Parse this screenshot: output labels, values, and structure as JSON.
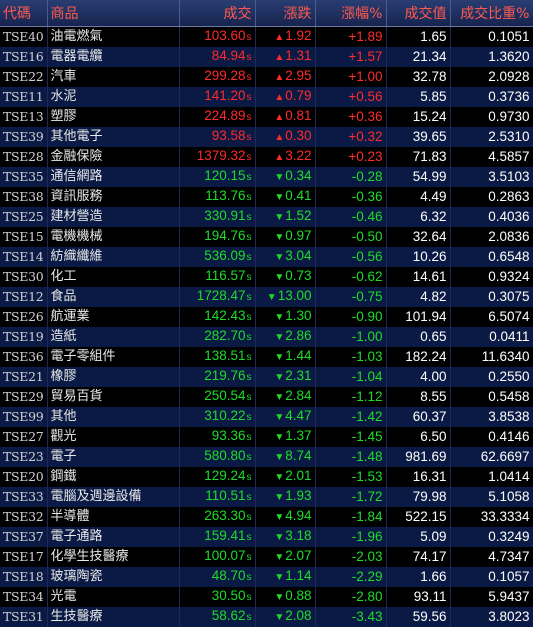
{
  "headers": {
    "code": "代碼",
    "name": "商品",
    "price": "成交",
    "change": "漲跌",
    "pct": "漲幅%",
    "volume": "成交值",
    "ratio": "成交比重%"
  },
  "colors": {
    "up": "#ff2a2a",
    "down": "#1fdc2a",
    "header_text": "#ff5a50",
    "row_alt": "#0a1a44"
  },
  "rows": [
    {
      "code": "TSE40",
      "name": "油電燃氣",
      "price": "103.60",
      "flag": "s",
      "dir": "up",
      "change": "1.92",
      "pct": "+1.89",
      "volume": "1.65",
      "ratio": "0.1051"
    },
    {
      "code": "TSE16",
      "name": "電器電纜",
      "price": "84.94",
      "flag": "s",
      "dir": "up",
      "change": "1.31",
      "pct": "+1.57",
      "volume": "21.34",
      "ratio": "1.3620"
    },
    {
      "code": "TSE22",
      "name": "汽車",
      "price": "299.28",
      "flag": "s",
      "dir": "up",
      "change": "2.95",
      "pct": "+1.00",
      "volume": "32.78",
      "ratio": "2.0928"
    },
    {
      "code": "TSE11",
      "name": "水泥",
      "price": "141.20",
      "flag": "s",
      "dir": "up",
      "change": "0.79",
      "pct": "+0.56",
      "volume": "5.85",
      "ratio": "0.3736"
    },
    {
      "code": "TSE13",
      "name": "塑膠",
      "price": "224.89",
      "flag": "s",
      "dir": "up",
      "change": "0.81",
      "pct": "+0.36",
      "volume": "15.24",
      "ratio": "0.9730"
    },
    {
      "code": "TSE39",
      "name": "其他電子",
      "price": "93.58",
      "flag": "s",
      "dir": "up",
      "change": "0.30",
      "pct": "+0.32",
      "volume": "39.65",
      "ratio": "2.5310"
    },
    {
      "code": "TSE28",
      "name": "金融保險",
      "price": "1379.32",
      "flag": "s",
      "dir": "up",
      "change": "3.22",
      "pct": "+0.23",
      "volume": "71.83",
      "ratio": "4.5857"
    },
    {
      "code": "TSE35",
      "name": "通信網路",
      "price": "120.15",
      "flag": "s",
      "dir": "dn",
      "change": "0.34",
      "pct": "-0.28",
      "volume": "54.99",
      "ratio": "3.5103"
    },
    {
      "code": "TSE38",
      "name": "資訊服務",
      "price": "113.76",
      "flag": "s",
      "dir": "dn",
      "change": "0.41",
      "pct": "-0.36",
      "volume": "4.49",
      "ratio": "0.2863"
    },
    {
      "code": "TSE25",
      "name": "建材營造",
      "price": "330.91",
      "flag": "s",
      "dir": "dn",
      "change": "1.52",
      "pct": "-0.46",
      "volume": "6.32",
      "ratio": "0.4036"
    },
    {
      "code": "TSE15",
      "name": "電機機械",
      "price": "194.76",
      "flag": "s",
      "dir": "dn",
      "change": "0.97",
      "pct": "-0.50",
      "volume": "32.64",
      "ratio": "2.0836"
    },
    {
      "code": "TSE14",
      "name": "紡織纖維",
      "price": "536.09",
      "flag": "s",
      "dir": "dn",
      "change": "3.04",
      "pct": "-0.56",
      "volume": "10.26",
      "ratio": "0.6548"
    },
    {
      "code": "TSE30",
      "name": "化工",
      "price": "116.57",
      "flag": "s",
      "dir": "dn",
      "change": "0.73",
      "pct": "-0.62",
      "volume": "14.61",
      "ratio": "0.9324"
    },
    {
      "code": "TSE12",
      "name": "食品",
      "price": "1728.47",
      "flag": "s",
      "dir": "dn",
      "change": "13.00",
      "pct": "-0.75",
      "volume": "4.82",
      "ratio": "0.3075"
    },
    {
      "code": "TSE26",
      "name": "航運業",
      "price": "142.43",
      "flag": "s",
      "dir": "dn",
      "change": "1.30",
      "pct": "-0.90",
      "volume": "101.94",
      "ratio": "6.5074"
    },
    {
      "code": "TSE19",
      "name": "造紙",
      "price": "282.70",
      "flag": "s",
      "dir": "dn",
      "change": "2.86",
      "pct": "-1.00",
      "volume": "0.65",
      "ratio": "0.0411"
    },
    {
      "code": "TSE36",
      "name": "電子零組件",
      "price": "138.51",
      "flag": "s",
      "dir": "dn",
      "change": "1.44",
      "pct": "-1.03",
      "volume": "182.24",
      "ratio": "11.6340"
    },
    {
      "code": "TSE21",
      "name": "橡膠",
      "price": "219.76",
      "flag": "s",
      "dir": "dn",
      "change": "2.31",
      "pct": "-1.04",
      "volume": "4.00",
      "ratio": "0.2550"
    },
    {
      "code": "TSE29",
      "name": "貿易百貨",
      "price": "250.54",
      "flag": "s",
      "dir": "dn",
      "change": "2.84",
      "pct": "-1.12",
      "volume": "8.55",
      "ratio": "0.5458"
    },
    {
      "code": "TSE99",
      "name": "其他",
      "price": "310.22",
      "flag": "s",
      "dir": "dn",
      "change": "4.47",
      "pct": "-1.42",
      "volume": "60.37",
      "ratio": "3.8538"
    },
    {
      "code": "TSE27",
      "name": "觀光",
      "price": "93.36",
      "flag": "s",
      "dir": "dn",
      "change": "1.37",
      "pct": "-1.45",
      "volume": "6.50",
      "ratio": "0.4146"
    },
    {
      "code": "TSE23",
      "name": "電子",
      "price": "580.80",
      "flag": "s",
      "dir": "dn",
      "change": "8.74",
      "pct": "-1.48",
      "volume": "981.69",
      "ratio": "62.6697"
    },
    {
      "code": "TSE20",
      "name": "鋼鐵",
      "price": "129.24",
      "flag": "s",
      "dir": "dn",
      "change": "2.01",
      "pct": "-1.53",
      "volume": "16.31",
      "ratio": "1.0414"
    },
    {
      "code": "TSE33",
      "name": "電腦及週邊設備",
      "price": "110.51",
      "flag": "s",
      "dir": "dn",
      "change": "1.93",
      "pct": "-1.72",
      "volume": "79.98",
      "ratio": "5.1058"
    },
    {
      "code": "TSE32",
      "name": "半導體",
      "price": "263.30",
      "flag": "s",
      "dir": "dn",
      "change": "4.94",
      "pct": "-1.84",
      "volume": "522.15",
      "ratio": "33.3334"
    },
    {
      "code": "TSE37",
      "name": "電子通路",
      "price": "159.41",
      "flag": "s",
      "dir": "dn",
      "change": "3.18",
      "pct": "-1.96",
      "volume": "5.09",
      "ratio": "0.3249"
    },
    {
      "code": "TSE17",
      "name": "化學生技醫療",
      "price": "100.07",
      "flag": "s",
      "dir": "dn",
      "change": "2.07",
      "pct": "-2.03",
      "volume": "74.17",
      "ratio": "4.7347"
    },
    {
      "code": "TSE18",
      "name": "玻璃陶瓷",
      "price": "48.70",
      "flag": "s",
      "dir": "dn",
      "change": "1.14",
      "pct": "-2.29",
      "volume": "1.66",
      "ratio": "0.1057"
    },
    {
      "code": "TSE34",
      "name": "光電",
      "price": "30.50",
      "flag": "s",
      "dir": "dn",
      "change": "0.88",
      "pct": "-2.80",
      "volume": "93.11",
      "ratio": "5.9437"
    },
    {
      "code": "TSE31",
      "name": "生技醫療",
      "price": "58.62",
      "flag": "s",
      "dir": "dn",
      "change": "2.08",
      "pct": "-3.43",
      "volume": "59.56",
      "ratio": "3.8023"
    }
  ]
}
